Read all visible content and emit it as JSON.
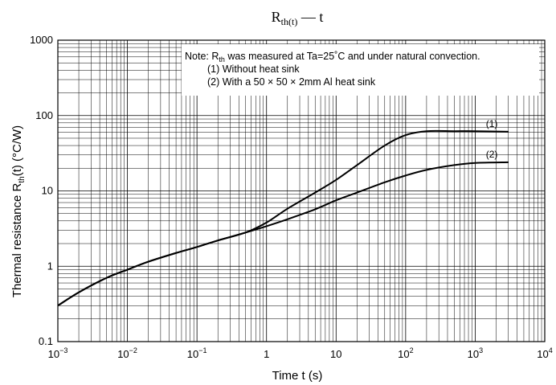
{
  "chart_data": {
    "type": "line",
    "title": {
      "main": "R",
      "sub": "th(t)",
      "tail": " — t"
    },
    "xlabel": "Time   t   (s)",
    "ylabel": {
      "pre": "Thermal resistance   R",
      "sub": "th",
      "post": "(t)   (°C/W)"
    },
    "x_scale": "log",
    "y_scale": "log",
    "xlim": [
      0.001,
      10000
    ],
    "ylim": [
      0.1,
      1000
    ],
    "grid": true,
    "x_ticks": [
      {
        "value": 0.001,
        "base": "10",
        "exp": "−3"
      },
      {
        "value": 0.01,
        "base": "10",
        "exp": "−2"
      },
      {
        "value": 0.1,
        "base": "10",
        "exp": "−1"
      },
      {
        "value": 1,
        "base": "1",
        "exp": ""
      },
      {
        "value": 10,
        "base": "10",
        "exp": ""
      },
      {
        "value": 100,
        "base": "10",
        "exp": "2"
      },
      {
        "value": 1000,
        "base": "10",
        "exp": "3"
      },
      {
        "value": 10000,
        "base": "10",
        "exp": "4"
      }
    ],
    "y_ticks": [
      {
        "value": 0.1,
        "label": "0.1"
      },
      {
        "value": 1,
        "label": "1"
      },
      {
        "value": 10,
        "label": "10"
      },
      {
        "value": 100,
        "label": "100"
      },
      {
        "value": 1000,
        "label": "1000"
      }
    ],
    "note": {
      "line1_pre": "Note: R",
      "line1_sub": "th",
      "line1_post": " was measured at Ta=25˚C and under natural convection.",
      "line2": "(1) Without heat sink",
      "line3": "(2) With a 50 × 50 × 2mm Al heat sink"
    },
    "series": [
      {
        "label": "(1)",
        "x": [
          0.001,
          0.002,
          0.005,
          0.01,
          0.02,
          0.05,
          0.1,
          0.2,
          0.5,
          1,
          2,
          5,
          10,
          20,
          50,
          100,
          200,
          500,
          1000,
          3000
        ],
        "y": [
          0.3,
          0.45,
          0.7,
          0.9,
          1.15,
          1.5,
          1.8,
          2.2,
          2.8,
          3.8,
          5.8,
          9.5,
          14,
          22,
          40,
          55,
          62,
          62,
          62,
          61
        ]
      },
      {
        "label": "(2)",
        "x": [
          0.001,
          0.002,
          0.005,
          0.01,
          0.02,
          0.05,
          0.1,
          0.2,
          0.5,
          1,
          2,
          5,
          10,
          20,
          50,
          100,
          200,
          500,
          1000,
          3000
        ],
        "y": [
          0.3,
          0.45,
          0.7,
          0.9,
          1.15,
          1.5,
          1.8,
          2.2,
          2.8,
          3.4,
          4.2,
          5.7,
          7.5,
          9.5,
          13,
          16,
          19,
          22,
          23.5,
          24
        ]
      }
    ]
  }
}
